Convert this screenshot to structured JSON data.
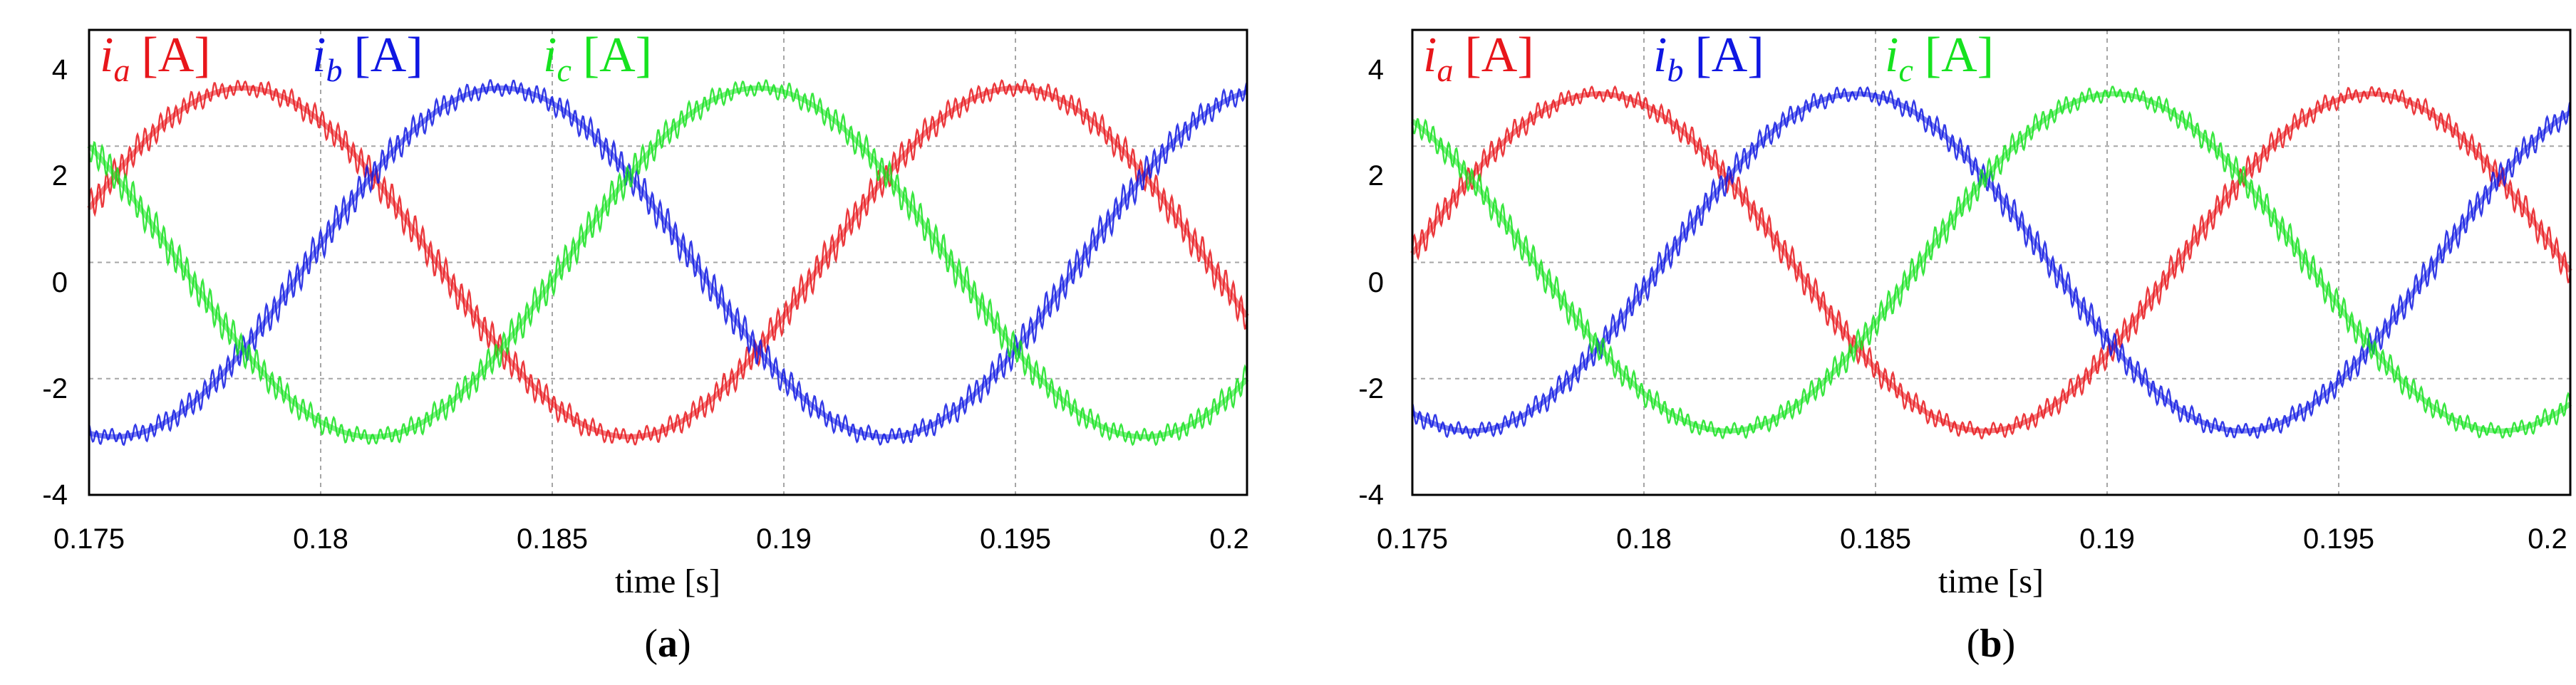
{
  "chart_data": [
    {
      "type": "line",
      "panel_label": "a",
      "xlabel": "time [s]",
      "xlim": [
        0.175,
        0.2
      ],
      "ylim": [
        -4,
        4
      ],
      "x_ticks": [
        "0.175",
        "0.18",
        "0.185",
        "0.19",
        "0.195",
        "0.2"
      ],
      "y_ticks": [
        "4",
        "2",
        "0",
        "-2",
        "-4"
      ],
      "grid": true,
      "legend_placement": "top-left inside",
      "amplitude": 3.0,
      "frequency_hz": 60,
      "ripple_amplitude": 0.25,
      "series": [
        {
          "name_symbol": "i",
          "name_sub": "a",
          "unit": "[A]",
          "color": "#e8161b",
          "phase_deg": 198
        },
        {
          "name_symbol": "i",
          "name_sub": "b",
          "unit": "[A]",
          "color": "#0f17e2",
          "phase_deg": 78
        },
        {
          "name_symbol": "i",
          "name_sub": "c",
          "unit": "[A]",
          "color": "#16e21f",
          "phase_deg": 318
        }
      ]
    },
    {
      "type": "line",
      "panel_label": "b",
      "xlabel": "time [s]",
      "xlim": [
        0.175,
        0.2
      ],
      "ylim": [
        -4,
        4
      ],
      "x_ticks": [
        "0.175",
        "0.18",
        "0.185",
        "0.19",
        "0.195",
        "0.2"
      ],
      "y_ticks": [
        "4",
        "2",
        "0",
        "-2",
        "-4"
      ],
      "grid": true,
      "legend_placement": "top-left inside",
      "amplitude": 2.9,
      "frequency_hz": 60,
      "ripple_amplitude": 0.22,
      "series": [
        {
          "name_symbol": "i",
          "name_sub": "a",
          "unit": "[A]",
          "color": "#e8161b",
          "phase_deg": 183
        },
        {
          "name_symbol": "i",
          "name_sub": "b",
          "unit": "[A]",
          "color": "#0f17e2",
          "phase_deg": 63
        },
        {
          "name_symbol": "i",
          "name_sub": "c",
          "unit": "[A]",
          "color": "#16e21f",
          "phase_deg": 303
        }
      ]
    }
  ]
}
